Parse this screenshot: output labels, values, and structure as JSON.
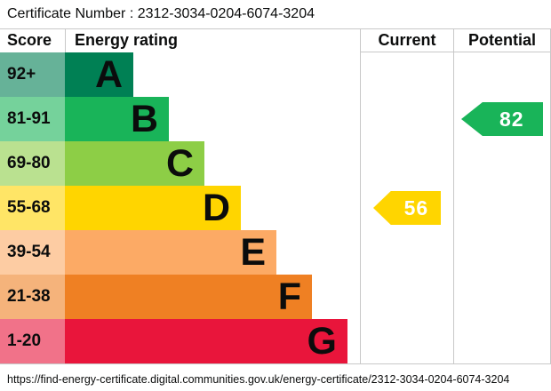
{
  "certificate_number_line": "Certificate Number : 2312-3034-0204-6074-3204",
  "header": {
    "score": "Score",
    "rating": "Energy rating",
    "current": "Current",
    "potential": "Potential"
  },
  "chart_data": {
    "type": "bar",
    "subtype": "epc-energy-rating-staircase",
    "title": "Energy rating",
    "bands": [
      {
        "score_range": "92+",
        "letter": "A",
        "bar_color": "#008054",
        "score_cell_color": "#66b298"
      },
      {
        "score_range": "81-91",
        "letter": "B",
        "bar_color": "#19b459",
        "score_cell_color": "#75d29b"
      },
      {
        "score_range": "69-80",
        "letter": "C",
        "bar_color": "#8dce46",
        "score_cell_color": "#bae190"
      },
      {
        "score_range": "55-68",
        "letter": "D",
        "bar_color": "#ffd500",
        "score_cell_color": "#ffe566"
      },
      {
        "score_range": "39-54",
        "letter": "E",
        "bar_color": "#fcaa65",
        "score_cell_color": "#fdcca3"
      },
      {
        "score_range": "21-38",
        "letter": "F",
        "bar_color": "#ef8023",
        "score_cell_color": "#f5b37b"
      },
      {
        "score_range": "1-20",
        "letter": "G",
        "bar_color": "#e9153b",
        "score_cell_color": "#f17289"
      }
    ],
    "current": {
      "value": "56",
      "band": "D",
      "arrow_color": "#ffd500",
      "text_color": "#ffffff"
    },
    "potential": {
      "value": "82",
      "band": "B",
      "arrow_color": "#19b459",
      "text_color": "#ffffff"
    }
  },
  "footer_url": "https://find-energy-certificate.digital.communities.gov.uk/energy-certificate/2312-3034-0204-6074-3204"
}
